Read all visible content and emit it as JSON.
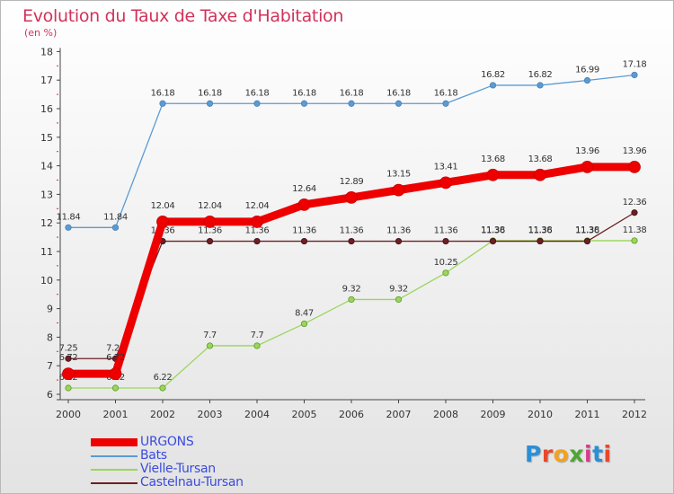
{
  "title": "Evolution du Taux de Taxe d'Habitation",
  "unit_label": "(en %)",
  "brand": {
    "text": "Proxiti",
    "letter_colors": [
      "#2a8fd6",
      "#e9472b",
      "#f2a21d",
      "#4aa82f",
      "#d93b8c",
      "#2a8fd6",
      "#e9472b"
    ]
  },
  "chart_data": {
    "type": "line",
    "title": "Evolution du Taux de Taxe d'Habitation",
    "ylabel": "(en %)",
    "xlabel": "",
    "x": [
      "2000",
      "2001",
      "2002",
      "2003",
      "2004",
      "2005",
      "2006",
      "2007",
      "2008",
      "2009",
      "2010",
      "2011",
      "2012"
    ],
    "ylim": [
      6,
      18
    ],
    "yticks": [
      6,
      7,
      8,
      9,
      10,
      11,
      12,
      13,
      14,
      15,
      16,
      17,
      18
    ],
    "grid": false,
    "legend_position": "bottom-left",
    "series": [
      {
        "name": "Bats",
        "color": "#5b9bd5",
        "values": [
          11.84,
          11.84,
          16.18,
          16.18,
          16.18,
          16.18,
          16.18,
          16.18,
          16.18,
          16.82,
          16.82,
          16.99,
          17.18
        ],
        "labels": [
          "11.84",
          "11.84",
          "16.18",
          "16.18",
          "16.18",
          "16.18",
          "16.18",
          "16.18",
          "16.18",
          "16.82",
          "16.82",
          "16.99",
          "17.18"
        ]
      },
      {
        "name": "Vielle-Tursan",
        "color": "#9ad65a",
        "values": [
          6.22,
          6.22,
          6.22,
          7.7,
          7.7,
          8.47,
          9.32,
          9.32,
          10.25,
          11.38,
          11.38,
          11.38,
          11.38
        ],
        "labels": [
          "6.22",
          "6.22",
          "6.22",
          "7.7",
          "7.7",
          "8.47",
          "9.32",
          "9.32",
          "10.25",
          "11.38",
          "11.38",
          "11.38",
          "11.38"
        ]
      },
      {
        "name": "Castelnau-Tursan",
        "color": "#6e1f24",
        "values": [
          7.25,
          7.25,
          11.36,
          11.36,
          11.36,
          11.36,
          11.36,
          11.36,
          11.36,
          11.36,
          11.36,
          11.36,
          12.36
        ],
        "labels": [
          "7.25",
          "7.25",
          "11.36",
          "11.36",
          "11.36",
          "11.36",
          "11.36",
          "11.36",
          "11.36",
          "11.36",
          "11.36",
          "11.36",
          "12.36"
        ]
      },
      {
        "name": "URGONS",
        "color": "#ee0000",
        "values": [
          6.72,
          6.72,
          12.04,
          12.04,
          12.04,
          12.64,
          12.89,
          13.15,
          13.41,
          13.68,
          13.68,
          13.96,
          13.96
        ],
        "labels": [
          "6.72",
          "6.72",
          "12.04",
          "12.04",
          "12.04",
          "12.64",
          "12.89",
          "13.15",
          "13.41",
          "13.68",
          "13.68",
          "13.96",
          "13.96"
        ]
      }
    ]
  }
}
